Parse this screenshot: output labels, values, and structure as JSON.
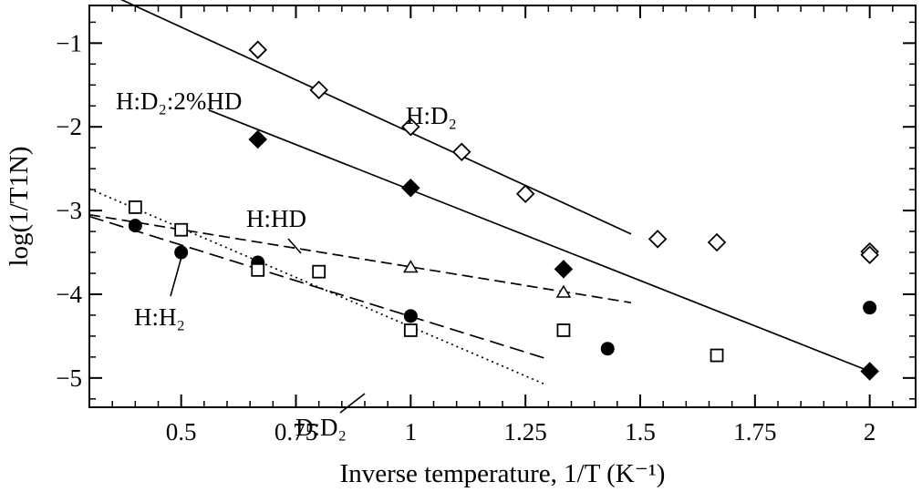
{
  "chart_data": {
    "type": "scatter",
    "xlabel": "Inverse temperature, 1/T (K⁻¹)",
    "ylabel": "log(1/T1N)",
    "xlim": [
      0.3,
      2.1
    ],
    "ylim": [
      -5.35,
      -0.55
    ],
    "x_ticks": [
      0.5,
      0.75,
      1,
      1.25,
      1.5,
      1.75,
      2
    ],
    "x_tick_labels": [
      "0.5",
      "0.75",
      "1",
      "1.25",
      "1.5",
      "1.75",
      "2"
    ],
    "y_ticks": [
      -1,
      -2,
      -3,
      -4,
      -5
    ],
    "y_tick_labels": [
      "−1",
      "−2",
      "−3",
      "−4",
      "−5"
    ],
    "grid": false,
    "series": [
      {
        "name": "H:D₂",
        "marker": "open-diamond",
        "x": [
          0.667,
          0.8,
          1.0,
          1.111,
          1.25,
          1.538,
          1.667,
          2.0,
          2.0
        ],
        "y": [
          -1.08,
          -1.56,
          -2.0,
          -2.3,
          -2.8,
          -3.34,
          -3.38,
          -3.49,
          -3.53
        ],
        "fit": {
          "style": "solid",
          "x": [
            0.33,
            1.48
          ],
          "y": [
            -0.38,
            -3.28
          ]
        }
      },
      {
        "name": "H:D₂:2%HD",
        "marker": "filled-diamond",
        "x": [
          0.667,
          1.0,
          1.333,
          2.0
        ],
        "y": [
          -2.15,
          -2.73,
          -3.7,
          -4.92
        ],
        "fit": {
          "style": "solid",
          "x": [
            0.56,
            2.0
          ],
          "y": [
            -1.8,
            -4.92
          ]
        }
      },
      {
        "name": "H:HD",
        "marker": "open-triangle",
        "x": [
          1.0,
          1.333
        ],
        "y": [
          -3.68,
          -3.98
        ],
        "fit": {
          "style": "dashed",
          "x": [
            0.3,
            1.48
          ],
          "y": [
            -3.05,
            -4.1
          ]
        }
      },
      {
        "name": "H:H₂",
        "marker": "filled-circle",
        "x": [
          0.4,
          0.5,
          0.667,
          1.0,
          1.429,
          2.0
        ],
        "y": [
          -3.18,
          -3.5,
          -3.62,
          -4.26,
          -4.65,
          -4.16
        ],
        "fit": {
          "style": "long-dash",
          "x": [
            0.3,
            1.29
          ],
          "y": [
            -3.07,
            -4.76
          ]
        }
      },
      {
        "name": "D:D₂",
        "marker": "open-square",
        "x": [
          0.4,
          0.5,
          0.667,
          0.8,
          1.0,
          1.333,
          1.667
        ],
        "y": [
          -2.96,
          -3.23,
          -3.71,
          -3.73,
          -4.43,
          -4.43,
          -4.73
        ],
        "fit": {
          "style": "dotted",
          "x": [
            0.3,
            1.29
          ],
          "y": [
            -2.74,
            -5.07
          ]
        }
      }
    ],
    "annotations": [
      {
        "text": "H:D₂",
        "at_series": 0
      },
      {
        "text": "H:D₂:2%HD",
        "at_series": 1
      },
      {
        "text": "H:HD",
        "at_series": 2
      },
      {
        "text": "H:H₂",
        "at_series": 3
      },
      {
        "text": "D:D₂",
        "at_series": 4
      }
    ]
  }
}
